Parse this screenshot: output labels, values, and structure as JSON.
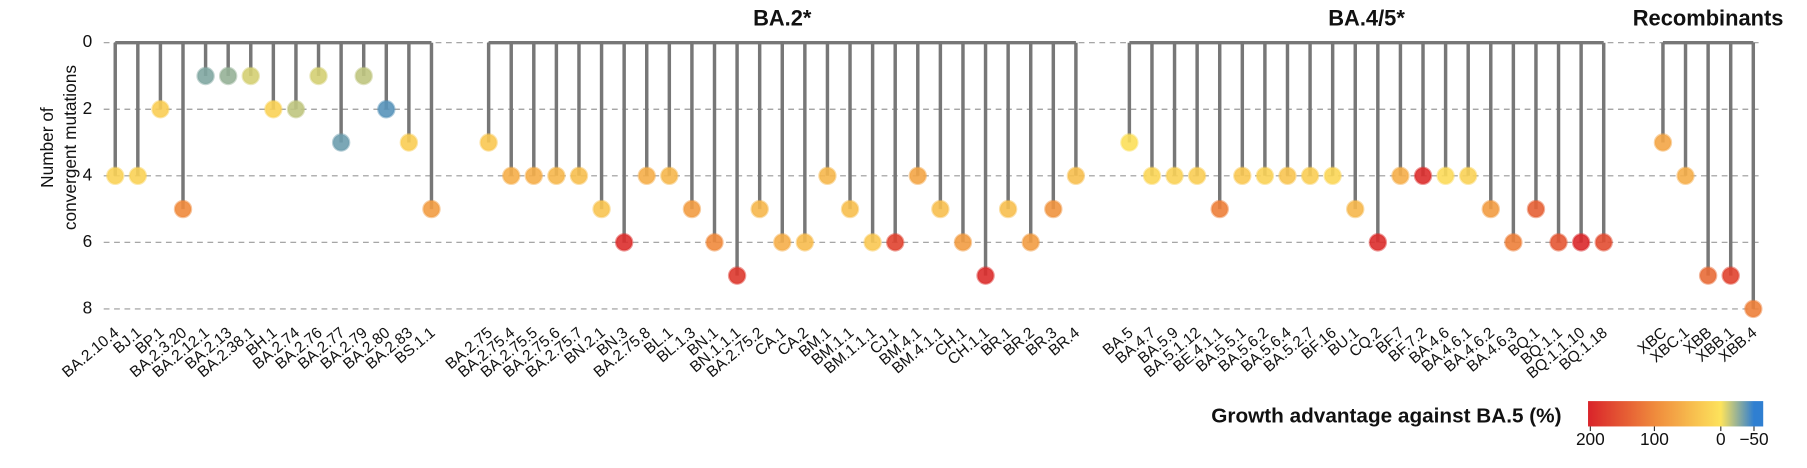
{
  "chart_data": {
    "type": "dendrogram-dot",
    "ylabel": [
      "Number of",
      "convergent mutations"
    ],
    "ylim": [
      0,
      8
    ],
    "yticks": [
      0,
      2,
      4,
      6,
      8
    ],
    "grid": true,
    "series": [
      {
        "name": null,
        "categories": [
          "BA.2.10.4",
          "BJ.1",
          "BP.1",
          "BA.2.3.20",
          "BA.2.12.1",
          "BA.2.13",
          "BA.2.38.1",
          "BH.1",
          "BA.2.74",
          "BA.2.76",
          "BA.2.77",
          "BA.2.79",
          "BA.2.80",
          "BA.2.83",
          "BS.1.1"
        ],
        "values": [
          4,
          4,
          2,
          5,
          1,
          1,
          1,
          2,
          2,
          1,
          3,
          1,
          2,
          3,
          5
        ],
        "growth": [
          20,
          20,
          25,
          100,
          -30,
          -25,
          -10,
          20,
          -15,
          -10,
          -35,
          -15,
          -40,
          25,
          80
        ]
      },
      {
        "name": "BA.2*",
        "categories": [
          "BA.2.75",
          "BA.2.75.4",
          "BA.2.75.5",
          "BA.2.75.6",
          "BA.2.75.7",
          "BN.2.1",
          "BN.3",
          "BA.2.75.8",
          "BL.1",
          "BL.1.3",
          "BN.1",
          "BN.1.1.1",
          "BA.2.75.2",
          "CA.1",
          "CA.2",
          "BM.1",
          "BM.1.1",
          "BM.1.1.1",
          "CJ.1",
          "BM.4.1",
          "BM.4.1.1",
          "CH.1",
          "CH.1.1",
          "BR.1",
          "BR.2",
          "BR.3",
          "BR.4"
        ],
        "values": [
          3,
          4,
          4,
          4,
          4,
          5,
          6,
          4,
          4,
          5,
          6,
          7,
          5,
          6,
          6,
          4,
          5,
          6,
          6,
          4,
          5,
          6,
          7,
          5,
          6,
          5,
          4
        ],
        "growth": [
          30,
          60,
          60,
          50,
          40,
          35,
          190,
          60,
          50,
          80,
          100,
          180,
          50,
          60,
          45,
          50,
          40,
          30,
          170,
          70,
          40,
          80,
          190,
          40,
          80,
          90,
          40
        ]
      },
      {
        "name": "BA.4/5*",
        "categories": [
          "BA.5",
          "BA.4.7",
          "BA.5.9",
          "BA.5.1.12",
          "BE.4.1.1",
          "BA.5.5.1",
          "BA.5.6.2",
          "BA.5.6.4",
          "BA.5.2.7",
          "BF.16",
          "BU.1",
          "CQ.2",
          "BF.7",
          "BF.7.2",
          "BA.4.6",
          "BA.4.6.1",
          "BA.4.6.2",
          "BA.4.6.3",
          "BQ.1",
          "BQ.1.1",
          "BQ.1.1.10",
          "BQ.1.18"
        ],
        "values": [
          3,
          4,
          4,
          4,
          5,
          4,
          4,
          4,
          4,
          4,
          5,
          6,
          4,
          4,
          4,
          4,
          5,
          6,
          5,
          6,
          6,
          6
        ],
        "growth": [
          5,
          15,
          20,
          25,
          110,
          30,
          20,
          35,
          25,
          15,
          50,
          190,
          60,
          190,
          10,
          20,
          80,
          110,
          140,
          150,
          195,
          160
        ]
      },
      {
        "name": "Recombinants",
        "categories": [
          "XBC",
          "XBC.1",
          "XBB",
          "XBB.1",
          "XBB.4"
        ],
        "values": [
          3,
          4,
          7,
          7,
          8
        ],
        "growth": [
          70,
          60,
          130,
          170,
          110
        ]
      }
    ],
    "colorbar": {
      "title": "Growth advantage against BA.5 (%)",
      "ticks": [
        200,
        100,
        0,
        {
          "value": -50,
          "label": "−50"
        }
      ],
      "colors": [
        "#d9232a",
        "#ef8a3c",
        "#fde35c",
        "#2f7fd1"
      ]
    }
  }
}
